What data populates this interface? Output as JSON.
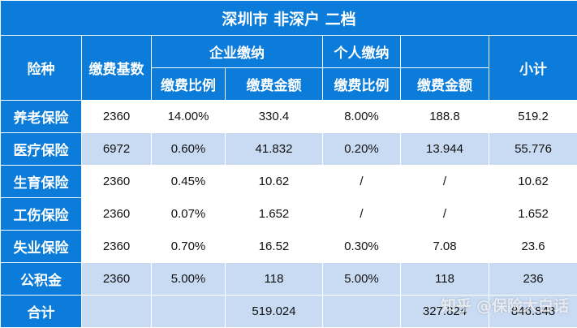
{
  "title": "深圳市 非深户 二档",
  "headers": {
    "type": "险种",
    "base": "缴费基数",
    "company_group": "企业缴纳",
    "personal_group": "个人缴纳",
    "company_ratio": "缴费比例",
    "company_amount": "缴费金额",
    "personal_ratio": "缴费比例",
    "personal_amount": "缴费金额",
    "subtotal": "小计"
  },
  "rows": [
    {
      "name": "养老保险",
      "base": "2360",
      "c_ratio": "14.00%",
      "c_amount": "330.4",
      "p_ratio": "8.00%",
      "p_amount": "188.8",
      "subtotal": "519.2"
    },
    {
      "name": "医疗保险",
      "base": "6972",
      "c_ratio": "0.60%",
      "c_amount": "41.832",
      "p_ratio": "0.20%",
      "p_amount": "13.944",
      "subtotal": "55.776"
    },
    {
      "name": "生育保险",
      "base": "2360",
      "c_ratio": "0.45%",
      "c_amount": "10.62",
      "p_ratio": "/",
      "p_amount": "/",
      "subtotal": "10.62"
    },
    {
      "name": "工伤保险",
      "base": "2360",
      "c_ratio": "0.07%",
      "c_amount": "1.652",
      "p_ratio": "/",
      "p_amount": "/",
      "subtotal": "1.652"
    },
    {
      "name": "失业保险",
      "base": "2360",
      "c_ratio": "0.70%",
      "c_amount": "16.52",
      "p_ratio": "0.30%",
      "p_amount": "7.08",
      "subtotal": "23.6"
    },
    {
      "name": "公积金",
      "base": "2360",
      "c_ratio": "5.00%",
      "c_amount": "118",
      "p_ratio": "5.00%",
      "p_amount": "118",
      "subtotal": "236"
    }
  ],
  "total": {
    "label": "合计",
    "company_amount": "519.024",
    "personal_amount": "327.824",
    "subtotal": "846.848"
  },
  "watermark": {
    "brand": "知乎",
    "author": "@保险大白话"
  }
}
